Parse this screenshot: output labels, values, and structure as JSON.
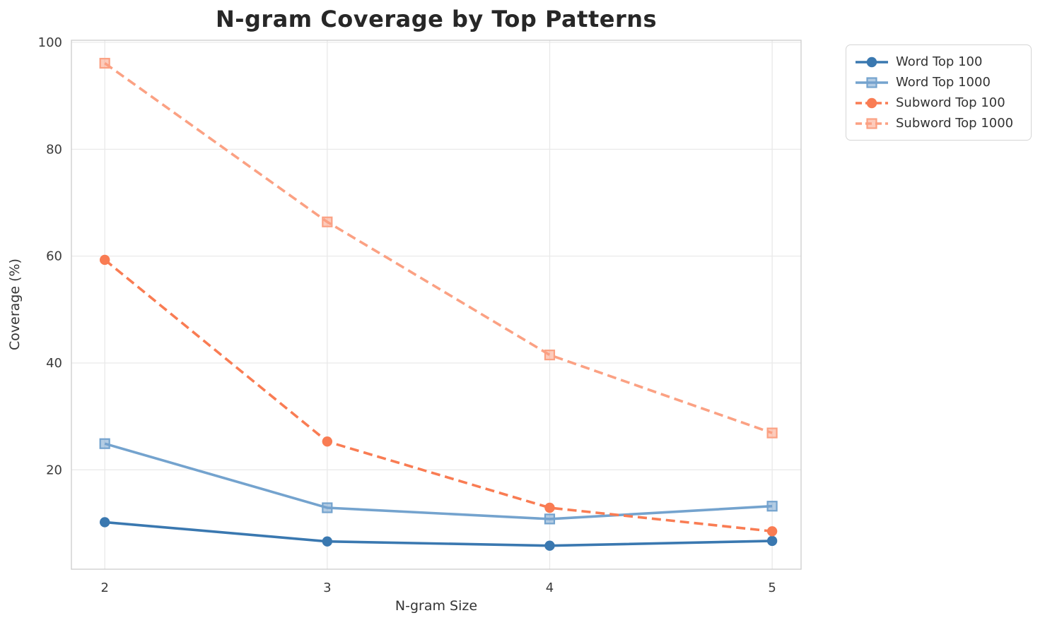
{
  "chart_data": {
    "type": "line",
    "title": "N-gram Coverage by Top Patterns",
    "xlabel": "N-gram Size",
    "ylabel": "Coverage (%)",
    "x": [
      2,
      3,
      4,
      5
    ],
    "xtick_labels": [
      "2",
      "3",
      "4",
      "5"
    ],
    "ytick_values": [
      20,
      40,
      60,
      80,
      100
    ],
    "ytick_labels": [
      "20",
      "40",
      "60",
      "80",
      "100"
    ],
    "xlim": [
      1.85,
      5.13
    ],
    "ylim": [
      1.4,
      100.4
    ],
    "grid": true,
    "legend_position": "outside-upper-right",
    "series": [
      {
        "name": "Word Top 100",
        "values": [
          10.2,
          6.6,
          5.8,
          6.7
        ],
        "color": "#3a78b0",
        "marker": "circle",
        "line_style": "solid"
      },
      {
        "name": "Word Top 1000",
        "values": [
          24.9,
          12.9,
          10.8,
          13.2
        ],
        "color": "#74a3ce",
        "marker": "square",
        "line_style": "solid"
      },
      {
        "name": "Subword Top 100",
        "values": [
          59.3,
          25.3,
          12.9,
          8.5
        ],
        "color": "#f97c53",
        "marker": "circle",
        "line_style": "dashed"
      },
      {
        "name": "Subword Top 1000",
        "values": [
          96.1,
          66.4,
          41.5,
          26.9
        ],
        "color": "#fba183",
        "marker": "square",
        "line_style": "dashed"
      }
    ],
    "colors": {
      "gridline": "#e9e9e9",
      "spine": "#cfcfcf",
      "tick_label": "#3b3b3b",
      "title": "#272727"
    }
  }
}
